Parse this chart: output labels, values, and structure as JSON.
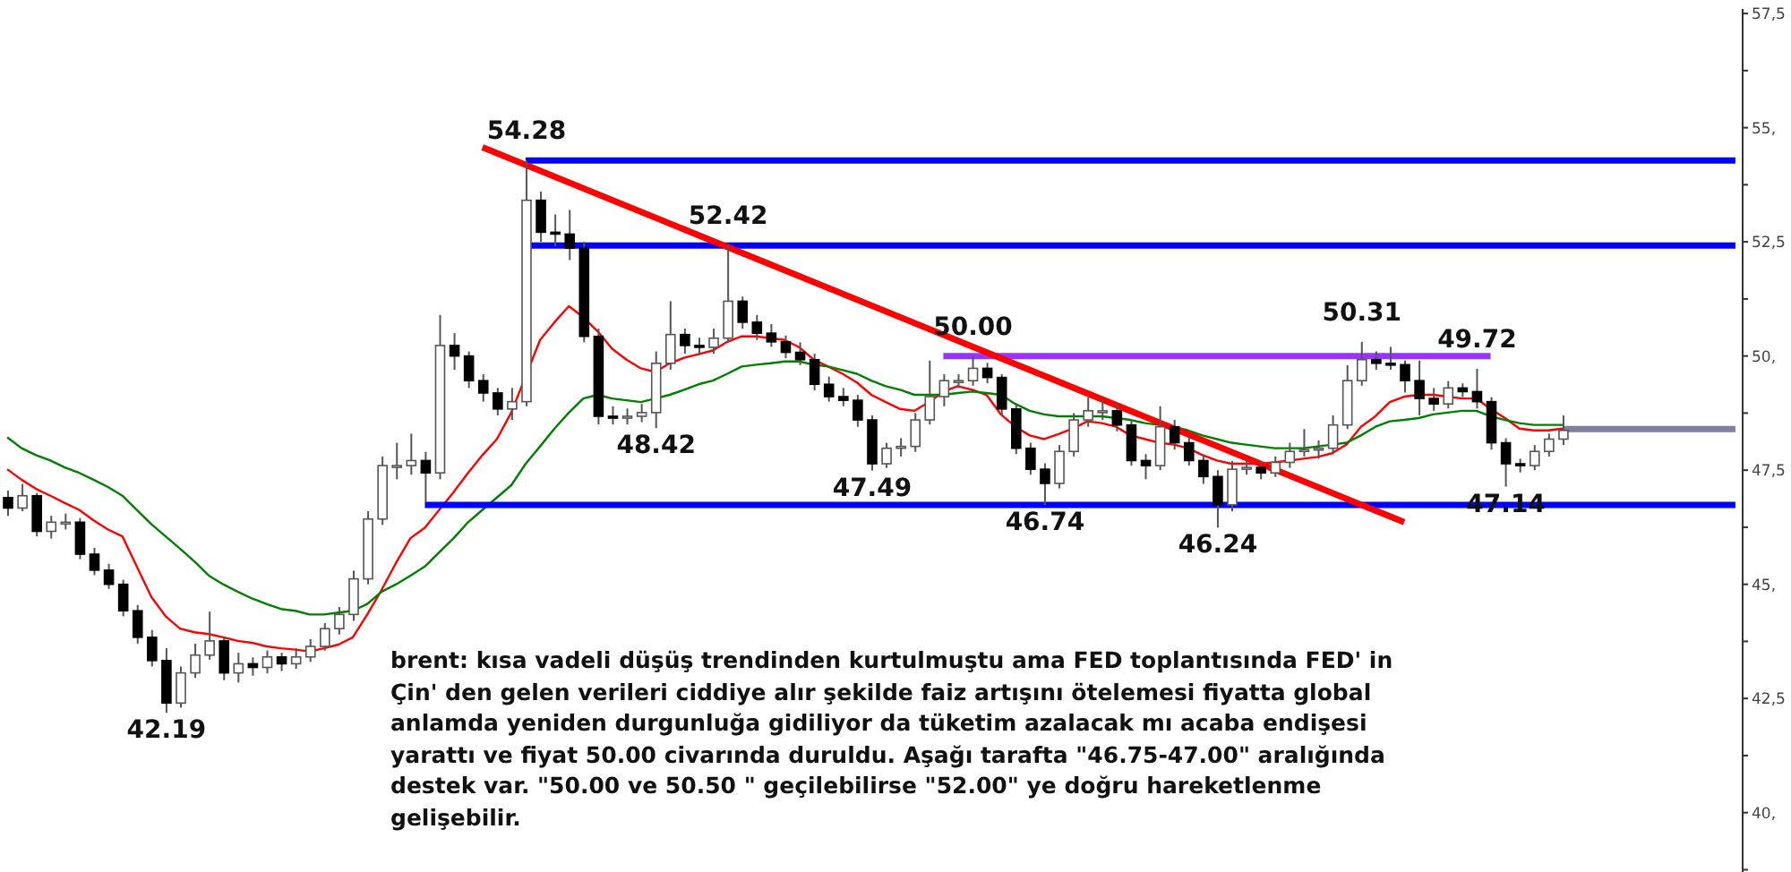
{
  "chart_data": {
    "type": "candlestick",
    "categories": [
      null,
      null,
      null,
      null,
      null,
      null,
      null,
      null,
      null,
      null,
      null,
      null,
      null,
      null,
      null,
      null,
      null,
      null,
      null,
      null,
      null,
      null,
      null,
      null,
      null,
      null,
      null,
      null,
      null,
      null,
      null,
      null,
      null,
      null,
      null,
      null,
      null,
      null,
      null,
      null,
      null,
      null,
      null,
      null,
      null,
      null,
      null,
      null,
      null,
      null,
      null,
      null,
      null,
      null,
      null,
      null,
      null,
      null,
      null,
      null,
      null,
      null,
      null,
      null,
      null,
      null,
      null,
      null,
      null,
      null,
      null,
      null,
      null,
      null,
      null,
      null,
      null,
      null,
      null,
      null,
      null,
      null,
      null,
      null,
      null,
      null,
      null,
      null,
      null,
      null,
      null,
      null,
      null,
      null,
      null,
      null,
      null,
      null,
      null,
      null,
      null,
      null,
      null,
      null,
      null,
      null,
      null,
      null,
      null,
      null,
      null,
      null,
      null,
      null,
      null,
      null,
      null,
      null,
      null,
      null,
      null
    ],
    "ohlc": [
      [
        46.9,
        47.05,
        46.5,
        46.67
      ],
      [
        46.67,
        47.2,
        46.6,
        46.94
      ],
      [
        46.94,
        47.0,
        46.05,
        46.16
      ],
      [
        46.16,
        46.5,
        46.0,
        46.36
      ],
      [
        46.36,
        46.55,
        46.2,
        46.36
      ],
      [
        46.36,
        46.45,
        45.55,
        45.66
      ],
      [
        45.66,
        45.8,
        45.2,
        45.31
      ],
      [
        45.31,
        45.45,
        44.9,
        45.0
      ],
      [
        45.0,
        45.1,
        44.3,
        44.42
      ],
      [
        44.42,
        44.55,
        43.7,
        43.84
      ],
      [
        43.84,
        44.0,
        43.2,
        43.33
      ],
      [
        43.33,
        43.6,
        42.19,
        42.4
      ],
      [
        42.4,
        43.2,
        42.3,
        43.06
      ],
      [
        43.06,
        43.7,
        42.95,
        43.45
      ],
      [
        43.45,
        44.4,
        43.35,
        43.76
      ],
      [
        43.76,
        43.85,
        42.9,
        43.06
      ],
      [
        43.06,
        43.5,
        42.85,
        43.26
      ],
      [
        43.26,
        43.4,
        43.0,
        43.18
      ],
      [
        43.18,
        43.55,
        43.05,
        43.41
      ],
      [
        43.41,
        43.5,
        43.1,
        43.26
      ],
      [
        43.26,
        43.6,
        43.15,
        43.41
      ],
      [
        43.41,
        43.8,
        43.3,
        43.64
      ],
      [
        43.64,
        44.15,
        43.55,
        44.03
      ],
      [
        44.03,
        44.5,
        43.9,
        44.34
      ],
      [
        44.34,
        45.3,
        44.2,
        45.12
      ],
      [
        45.12,
        46.6,
        45.0,
        46.43
      ],
      [
        46.43,
        47.8,
        46.3,
        47.6
      ],
      [
        47.6,
        48.1,
        47.3,
        47.6
      ],
      [
        47.6,
        48.3,
        47.4,
        47.71
      ],
      [
        47.71,
        47.9,
        46.8,
        47.44
      ],
      [
        47.44,
        50.9,
        47.3,
        50.23
      ],
      [
        50.23,
        50.5,
        49.7,
        50.0
      ],
      [
        50.0,
        50.1,
        49.3,
        49.46
      ],
      [
        49.46,
        49.6,
        49.0,
        49.19
      ],
      [
        49.19,
        49.3,
        48.7,
        48.84
      ],
      [
        48.84,
        49.3,
        48.6,
        49.0
      ],
      [
        49.0,
        54.28,
        48.9,
        53.41
      ],
      [
        53.41,
        53.6,
        52.5,
        52.71
      ],
      [
        52.71,
        53.1,
        52.4,
        52.67
      ],
      [
        52.67,
        53.2,
        52.1,
        52.36
      ],
      [
        52.36,
        52.5,
        50.3,
        50.43
      ],
      [
        50.43,
        50.6,
        48.5,
        48.68
      ],
      [
        48.68,
        48.9,
        48.5,
        48.64
      ],
      [
        48.64,
        48.85,
        48.5,
        48.68
      ],
      [
        48.68,
        48.95,
        48.55,
        48.76
      ],
      [
        48.76,
        50.1,
        48.42,
        49.84
      ],
      [
        49.84,
        51.2,
        49.7,
        50.47
      ],
      [
        50.47,
        50.6,
        50.05,
        50.23
      ],
      [
        50.23,
        50.4,
        50.02,
        50.19
      ],
      [
        50.19,
        50.6,
        50.05,
        50.39
      ],
      [
        50.39,
        52.42,
        50.3,
        51.2
      ],
      [
        51.2,
        51.3,
        50.6,
        50.74
      ],
      [
        50.74,
        50.9,
        50.35,
        50.5
      ],
      [
        50.5,
        50.7,
        50.2,
        50.31
      ],
      [
        50.31,
        50.45,
        49.95,
        50.08
      ],
      [
        50.08,
        50.3,
        49.8,
        49.92
      ],
      [
        49.92,
        50.05,
        49.25,
        49.38
      ],
      [
        49.38,
        49.55,
        49.0,
        49.11
      ],
      [
        49.11,
        49.3,
        48.9,
        49.03
      ],
      [
        49.03,
        49.15,
        48.45,
        48.6
      ],
      [
        48.6,
        48.7,
        47.49,
        47.64
      ],
      [
        47.64,
        48.1,
        47.55,
        47.98
      ],
      [
        47.98,
        48.2,
        47.8,
        48.02
      ],
      [
        48.02,
        48.75,
        47.9,
        48.6
      ],
      [
        48.6,
        49.9,
        48.5,
        49.11
      ],
      [
        49.11,
        49.6,
        48.9,
        49.46
      ],
      [
        49.46,
        49.6,
        49.3,
        49.46
      ],
      [
        49.46,
        50.0,
        49.35,
        49.73
      ],
      [
        49.73,
        49.85,
        49.4,
        49.53
      ],
      [
        49.53,
        49.6,
        48.7,
        48.84
      ],
      [
        48.84,
        48.95,
        47.85,
        47.98
      ],
      [
        47.98,
        48.1,
        47.4,
        47.52
      ],
      [
        47.52,
        47.65,
        46.74,
        47.21
      ],
      [
        47.21,
        48.05,
        47.1,
        47.91
      ],
      [
        47.91,
        48.75,
        47.8,
        48.6
      ],
      [
        48.6,
        49.1,
        48.45,
        48.8
      ],
      [
        48.8,
        49.05,
        48.6,
        48.8
      ],
      [
        48.8,
        48.95,
        48.35,
        48.49
      ],
      [
        48.49,
        48.6,
        47.6,
        47.71
      ],
      [
        47.71,
        47.85,
        47.3,
        47.6
      ],
      [
        47.6,
        48.9,
        47.5,
        48.45
      ],
      [
        48.45,
        48.6,
        47.95,
        48.1
      ],
      [
        48.1,
        48.25,
        47.6,
        47.71
      ],
      [
        47.71,
        47.85,
        47.2,
        47.36
      ],
      [
        47.36,
        47.5,
        46.24,
        46.74
      ],
      [
        46.74,
        47.7,
        46.6,
        47.52
      ],
      [
        47.52,
        47.75,
        47.4,
        47.56
      ],
      [
        47.56,
        47.7,
        47.3,
        47.44
      ],
      [
        47.44,
        47.8,
        47.35,
        47.67
      ],
      [
        47.67,
        48.1,
        47.55,
        47.91
      ],
      [
        47.91,
        48.4,
        47.8,
        47.95
      ],
      [
        47.95,
        48.15,
        47.75,
        47.98
      ],
      [
        47.98,
        48.7,
        47.85,
        48.49
      ],
      [
        48.49,
        49.8,
        48.4,
        49.46
      ],
      [
        49.46,
        50.31,
        49.35,
        49.92
      ],
      [
        49.92,
        50.1,
        49.7,
        49.84
      ],
      [
        49.84,
        50.2,
        49.7,
        49.81
      ],
      [
        49.81,
        49.9,
        49.2,
        49.46
      ],
      [
        49.46,
        49.9,
        48.7,
        49.07
      ],
      [
        49.07,
        49.3,
        48.8,
        48.95
      ],
      [
        48.95,
        49.45,
        48.85,
        49.3
      ],
      [
        49.3,
        49.4,
        49.1,
        49.22
      ],
      [
        49.22,
        49.72,
        48.85,
        49.0
      ],
      [
        49.0,
        49.1,
        47.95,
        48.1
      ],
      [
        48.1,
        48.2,
        47.14,
        47.64
      ],
      [
        47.64,
        47.75,
        47.45,
        47.6
      ],
      [
        47.6,
        48.05,
        47.5,
        47.91
      ],
      [
        47.91,
        48.3,
        47.8,
        48.18
      ],
      [
        48.18,
        48.7,
        48.05,
        48.37
      ],
      null,
      null,
      null,
      null,
      null,
      null,
      null,
      null,
      null,
      null,
      null,
      null
    ],
    "series": [
      {
        "type": "line",
        "color": "#ff0000",
        "values": [
          47.52,
          47.29,
          47.09,
          46.94,
          46.78,
          46.63,
          46.4,
          46.2,
          46.05,
          45.39,
          44.73,
          44.3,
          44.03,
          43.95,
          43.91,
          43.84,
          43.76,
          43.72,
          43.64,
          43.6,
          43.57,
          43.53,
          43.6,
          43.68,
          43.84,
          44.34,
          44.88,
          45.47,
          46.01,
          46.24,
          46.63,
          47.02,
          47.44,
          47.83,
          48.18,
          48.76,
          null,
          50.35,
          50.74,
          51.09,
          50.85,
          50.54,
          50.16,
          49.92,
          49.73,
          49.65,
          49.84,
          49.96,
          50.04,
          50.12,
          50.31,
          50.43,
          50.43,
          50.39,
          50.35,
          50.19,
          49.92,
          49.77,
          49.61,
          49.42,
          49.15,
          48.99,
          48.84,
          48.8,
          48.99,
          49.22,
          49.34,
          49.26,
          49.15,
          48.72,
          48.45,
          48.26,
          48.18,
          48.29,
          48.41,
          48.57,
          48.53,
          48.45,
          48.26,
          48.18,
          48.1,
          48.06,
          47.98,
          47.83,
          47.71,
          47.64,
          47.64,
          47.64,
          47.67,
          47.71,
          47.75,
          47.79,
          47.87,
          48.06,
          48.45,
          48.68,
          48.99,
          49.11,
          49.15,
          49.15,
          49.11,
          49.07,
          49.07,
          48.84,
          48.64,
          48.41,
          48.37,
          48.37,
          48.41,
          null,
          null,
          null,
          null,
          null,
          null,
          null,
          null,
          null,
          null,
          null,
          null
        ]
      },
      {
        "type": "line",
        "color": "#008000",
        "values": [
          48.22,
          47.98,
          47.83,
          47.71,
          47.56,
          47.44,
          47.29,
          47.13,
          46.94,
          46.63,
          46.32,
          46.05,
          45.78,
          45.5,
          45.19,
          45.0,
          44.84,
          44.69,
          44.57,
          44.46,
          44.42,
          44.34,
          44.34,
          44.38,
          44.42,
          44.57,
          44.84,
          45.0,
          45.19,
          45.39,
          45.7,
          46.01,
          46.36,
          46.63,
          46.9,
          47.17,
          47.64,
          48.02,
          48.41,
          48.76,
          49.07,
          49.15,
          49.07,
          49.03,
          48.99,
          49.07,
          49.15,
          49.26,
          49.38,
          49.46,
          49.61,
          49.77,
          49.81,
          49.84,
          49.88,
          49.88,
          49.81,
          49.77,
          49.69,
          49.61,
          49.46,
          49.34,
          49.26,
          49.15,
          49.15,
          49.15,
          49.19,
          49.22,
          49.19,
          49.15,
          48.95,
          48.8,
          48.72,
          48.68,
          48.68,
          48.68,
          48.68,
          48.64,
          48.6,
          48.53,
          48.49,
          48.45,
          48.37,
          48.26,
          48.18,
          48.1,
          48.06,
          48.02,
          47.98,
          47.98,
          47.98,
          48.02,
          48.06,
          48.1,
          48.26,
          48.45,
          48.57,
          48.6,
          48.64,
          48.72,
          48.76,
          48.8,
          48.8,
          48.68,
          48.6,
          48.53,
          48.49,
          48.49,
          48.49,
          null,
          null,
          null,
          null,
          null,
          null,
          null,
          null,
          null,
          null,
          null,
          null
        ]
      },
      {
        "type": "line",
        "color": "#0000ff",
        "values": [
          null,
          null,
          null,
          null,
          null,
          null,
          null,
          null,
          null,
          null,
          null,
          null,
          null,
          null,
          null,
          null,
          null,
          null,
          null,
          null,
          null,
          null,
          null,
          null,
          null,
          null,
          null,
          null,
          null,
          null,
          null,
          null,
          null,
          null,
          null,
          null,
          54.28,
          null,
          null,
          null,
          null,
          null,
          null,
          null,
          null,
          null,
          null,
          null,
          null,
          null,
          null,
          null,
          null,
          null,
          null,
          null,
          null,
          null,
          null,
          null,
          null,
          null,
          null,
          null,
          null,
          null,
          null,
          null,
          null,
          null,
          null,
          null,
          null,
          null,
          null,
          null,
          null,
          null,
          null,
          null,
          null,
          null,
          null,
          null,
          null,
          null,
          null,
          null,
          null,
          null,
          null,
          null,
          null,
          null,
          null,
          null,
          null,
          null,
          null,
          null,
          null,
          null,
          null,
          null,
          null,
          null,
          null,
          null,
          null,
          null,
          null,
          null,
          null,
          null,
          null,
          null,
          null,
          null,
          null,
          null,
          54.28
        ]
      },
      {
        "type": "line",
        "color": "#0000ff",
        "values": [
          null,
          null,
          null,
          null,
          null,
          null,
          null,
          null,
          null,
          null,
          null,
          null,
          null,
          null,
          null,
          null,
          null,
          null,
          null,
          null,
          null,
          null,
          null,
          null,
          null,
          null,
          null,
          null,
          null,
          null,
          null,
          null,
          null,
          null,
          null,
          null,
          52.42,
          null,
          null,
          null,
          null,
          null,
          null,
          null,
          null,
          null,
          null,
          null,
          null,
          null,
          null,
          null,
          null,
          null,
          null,
          null,
          null,
          null,
          null,
          null,
          null,
          null,
          null,
          null,
          null,
          null,
          null,
          null,
          null,
          null,
          null,
          null,
          null,
          null,
          null,
          null,
          null,
          null,
          null,
          null,
          null,
          null,
          null,
          null,
          null,
          null,
          null,
          null,
          null,
          null,
          null,
          null,
          null,
          null,
          null,
          null,
          null,
          null,
          null,
          null,
          null,
          null,
          null,
          null,
          null,
          null,
          null,
          null,
          null,
          null,
          null,
          null,
          null,
          null,
          null,
          null,
          null,
          null,
          null,
          null,
          52.42
        ]
      },
      {
        "type": "line",
        "color": "#0000ff",
        "values": [
          null,
          null,
          null,
          null,
          null,
          null,
          null,
          null,
          null,
          null,
          null,
          null,
          null,
          null,
          null,
          null,
          null,
          null,
          null,
          null,
          null,
          null,
          null,
          null,
          null,
          null,
          null,
          null,
          null,
          46.74,
          null,
          null,
          null,
          null,
          null,
          null,
          null,
          null,
          null,
          null,
          null,
          null,
          null,
          null,
          null,
          null,
          null,
          null,
          null,
          null,
          null,
          null,
          null,
          null,
          null,
          null,
          null,
          null,
          null,
          null,
          null,
          null,
          null,
          null,
          null,
          null,
          null,
          null,
          null,
          null,
          null,
          null,
          null,
          null,
          null,
          null,
          null,
          null,
          null,
          null,
          null,
          null,
          null,
          null,
          null,
          null,
          null,
          null,
          null,
          null,
          null,
          null,
          null,
          null,
          null,
          null,
          null,
          null,
          null,
          null,
          null,
          null,
          null,
          null,
          null,
          null,
          null,
          null,
          null,
          null,
          null,
          null,
          null,
          null,
          null,
          null,
          null,
          null,
          null,
          null,
          46.74
        ]
      },
      {
        "type": "line",
        "color": "#9933ff",
        "values": [
          null,
          null,
          null,
          null,
          null,
          null,
          null,
          null,
          null,
          null,
          null,
          null,
          null,
          null,
          null,
          null,
          null,
          null,
          null,
          null,
          null,
          null,
          null,
          null,
          null,
          null,
          null,
          null,
          null,
          null,
          null,
          null,
          null,
          null,
          null,
          null,
          null,
          null,
          null,
          null,
          null,
          null,
          null,
          null,
          null,
          null,
          null,
          null,
          null,
          null,
          null,
          null,
          null,
          null,
          null,
          null,
          null,
          null,
          null,
          null,
          null,
          null,
          null,
          null,
          null,
          50.0,
          null,
          null,
          null,
          null,
          null,
          null,
          null,
          null,
          null,
          null,
          null,
          null,
          null,
          null,
          null,
          null,
          null,
          null,
          null,
          null,
          null,
          null,
          null,
          null,
          null,
          null,
          null,
          null,
          null,
          null,
          null,
          null,
          null,
          null,
          null,
          null,
          null,
          50.0,
          null,
          null,
          null,
          null,
          null,
          null,
          null,
          null,
          null,
          null,
          null,
          null,
          null,
          null,
          null,
          null,
          null
        ]
      },
      {
        "type": "line",
        "color": "#7f7fa6",
        "values": [
          null,
          null,
          null,
          null,
          null,
          null,
          null,
          null,
          null,
          null,
          null,
          null,
          null,
          null,
          null,
          null,
          null,
          null,
          null,
          null,
          null,
          null,
          null,
          null,
          null,
          null,
          null,
          null,
          null,
          null,
          null,
          null,
          null,
          null,
          null,
          null,
          null,
          null,
          null,
          null,
          null,
          null,
          null,
          null,
          null,
          null,
          null,
          null,
          null,
          null,
          null,
          null,
          null,
          null,
          null,
          null,
          null,
          null,
          null,
          null,
          null,
          null,
          null,
          null,
          null,
          null,
          null,
          null,
          null,
          null,
          null,
          null,
          null,
          null,
          null,
          null,
          null,
          null,
          null,
          null,
          null,
          null,
          null,
          null,
          null,
          null,
          null,
          null,
          null,
          null,
          null,
          null,
          null,
          null,
          null,
          null,
          null,
          null,
          null,
          null,
          null,
          null,
          null,
          null,
          null,
          null,
          null,
          null,
          48.4,
          null,
          null,
          null,
          null,
          null,
          null,
          null,
          null,
          null,
          null,
          null,
          48.4
        ]
      },
      {
        "type": "line",
        "color": "#ff0000",
        "values": [
          null,
          null,
          null,
          null,
          null,
          null,
          null,
          null,
          null,
          null,
          null,
          null,
          null,
          null,
          null,
          null,
          null,
          null,
          null,
          null,
          null,
          null,
          null,
          null,
          null,
          null,
          null,
          null,
          null,
          null,
          null,
          null,
          null,
          54.57,
          null,
          null,
          null,
          null,
          null,
          null,
          null,
          null,
          null,
          null,
          null,
          null,
          null,
          null,
          null,
          null,
          null,
          null,
          null,
          null,
          null,
          null,
          null,
          null,
          null,
          null,
          null,
          null,
          null,
          null,
          null,
          null,
          null,
          null,
          null,
          null,
          null,
          null,
          null,
          null,
          null,
          null,
          null,
          null,
          null,
          null,
          null,
          null,
          null,
          null,
          null,
          null,
          null,
          null,
          null,
          null,
          null,
          null,
          null,
          null,
          null,
          null,
          null,
          46.36,
          null,
          null,
          null,
          null,
          null,
          null,
          null,
          null,
          null,
          null,
          null,
          null,
          null,
          null,
          null,
          null,
          null,
          null,
          null,
          null,
          null,
          null,
          null
        ]
      }
    ],
    "ylim": [
      38.7,
      57.6
    ],
    "yticks": [
      {
        "value": 38.75,
        "label": null
      },
      {
        "value": 40,
        "label": "40,"
      },
      {
        "value": 41.25,
        "label": null
      },
      {
        "value": 42.5,
        "label": "42,5"
      },
      {
        "value": 43.75,
        "label": null
      },
      {
        "value": 45,
        "label": "45,"
      },
      {
        "value": 46.25,
        "label": null
      },
      {
        "value": 47.5,
        "label": "47,5"
      },
      {
        "value": 48.75,
        "label": null
      },
      {
        "value": 50,
        "label": "50,"
      },
      {
        "value": 51.25,
        "label": null
      },
      {
        "value": 52.5,
        "label": "52,5"
      },
      {
        "value": 53.75,
        "label": null
      },
      {
        "value": 55,
        "label": "55,"
      },
      {
        "value": 56.25,
        "label": null
      },
      {
        "value": 57.5,
        "label": "57,5"
      }
    ],
    "annotations": [
      {
        "text": "54.28",
        "y": 54.28
      },
      {
        "text": "52.42",
        "y": 52.42
      },
      {
        "text": "50.00",
        "y": 50.0
      },
      {
        "text": "50.31",
        "y": 50.31
      },
      {
        "text": "49.72",
        "y": 49.72
      },
      {
        "text": "42.19",
        "y": 42.19
      },
      {
        "text": "48.42",
        "y": 48.42
      },
      {
        "text": "47.49",
        "y": 47.49
      },
      {
        "text": "46.74",
        "y": 46.74
      },
      {
        "text": "46.24",
        "y": 46.24
      },
      {
        "text": "47.14",
        "y": 47.14
      },
      "brent: kısa vadeli düşüş trendinden kurtulmuştu ama FED toplantısında FED' in Çin' den gelen verileri ciddiye alır şekilde faiz artışını ötelemesi fiyatta global anlamda yeniden durgunluğa gidiliyor da tüketim azalacak mı acaba endişesi yarattı ve fiyat 50.00 civarında duruldu. Aşağı tarafta \"46.75-47.00\" aralığında destek var. \"50.00 ve 50.50 \" geçilebilirse \"52.00\" ye doğru hareketlenme gelişebilir."
    ]
  }
}
